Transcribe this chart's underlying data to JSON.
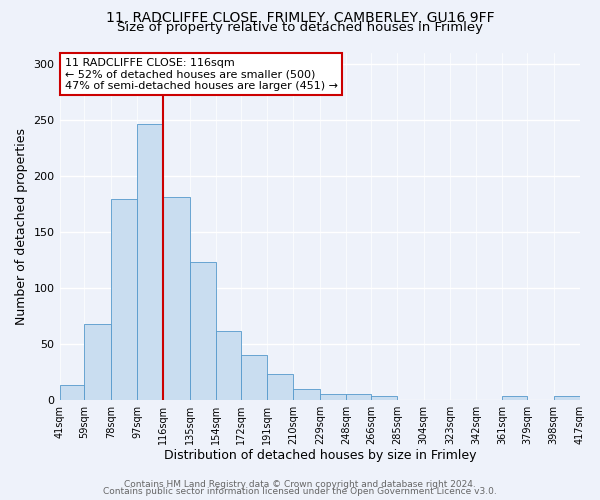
{
  "title_line1": "11, RADCLIFFE CLOSE, FRIMLEY, CAMBERLEY, GU16 9FF",
  "title_line2": "Size of property relative to detached houses in Frimley",
  "xlabel": "Distribution of detached houses by size in Frimley",
  "ylabel": "Number of detached properties",
  "bin_edges": [
    41,
    59,
    78,
    97,
    116,
    135,
    154,
    172,
    191,
    210,
    229,
    248,
    266,
    285,
    304,
    323,
    342,
    361,
    379,
    398,
    417
  ],
  "bar_heights": [
    13,
    68,
    179,
    246,
    181,
    123,
    61,
    40,
    23,
    10,
    5,
    5,
    3,
    0,
    0,
    0,
    0,
    3,
    0,
    3
  ],
  "bar_color": "#c9ddf0",
  "bar_edge_color": "#5599cc",
  "vline_x": 116,
  "vline_color": "#cc0000",
  "annotation_text": "11 RADCLIFFE CLOSE: 116sqm\n← 52% of detached houses are smaller (500)\n47% of semi-detached houses are larger (451) →",
  "annotation_box_color": "#ffffff",
  "annotation_box_edge": "#cc0000",
  "ylim": [
    0,
    310
  ],
  "xlim": [
    41,
    417
  ],
  "tick_labels": [
    "41sqm",
    "59sqm",
    "78sqm",
    "97sqm",
    "116sqm",
    "135sqm",
    "154sqm",
    "172sqm",
    "191sqm",
    "210sqm",
    "229sqm",
    "248sqm",
    "266sqm",
    "285sqm",
    "304sqm",
    "323sqm",
    "342sqm",
    "361sqm",
    "379sqm",
    "398sqm",
    "417sqm"
  ],
  "footer_line1": "Contains HM Land Registry data © Crown copyright and database right 2024.",
  "footer_line2": "Contains public sector information licensed under the Open Government Licence v3.0.",
  "bg_color": "#eef2fa",
  "title_fontsize": 10,
  "subtitle_fontsize": 9.5,
  "axis_label_fontsize": 9,
  "tick_fontsize": 7,
  "annotation_fontsize": 8,
  "footer_fontsize": 6.5
}
